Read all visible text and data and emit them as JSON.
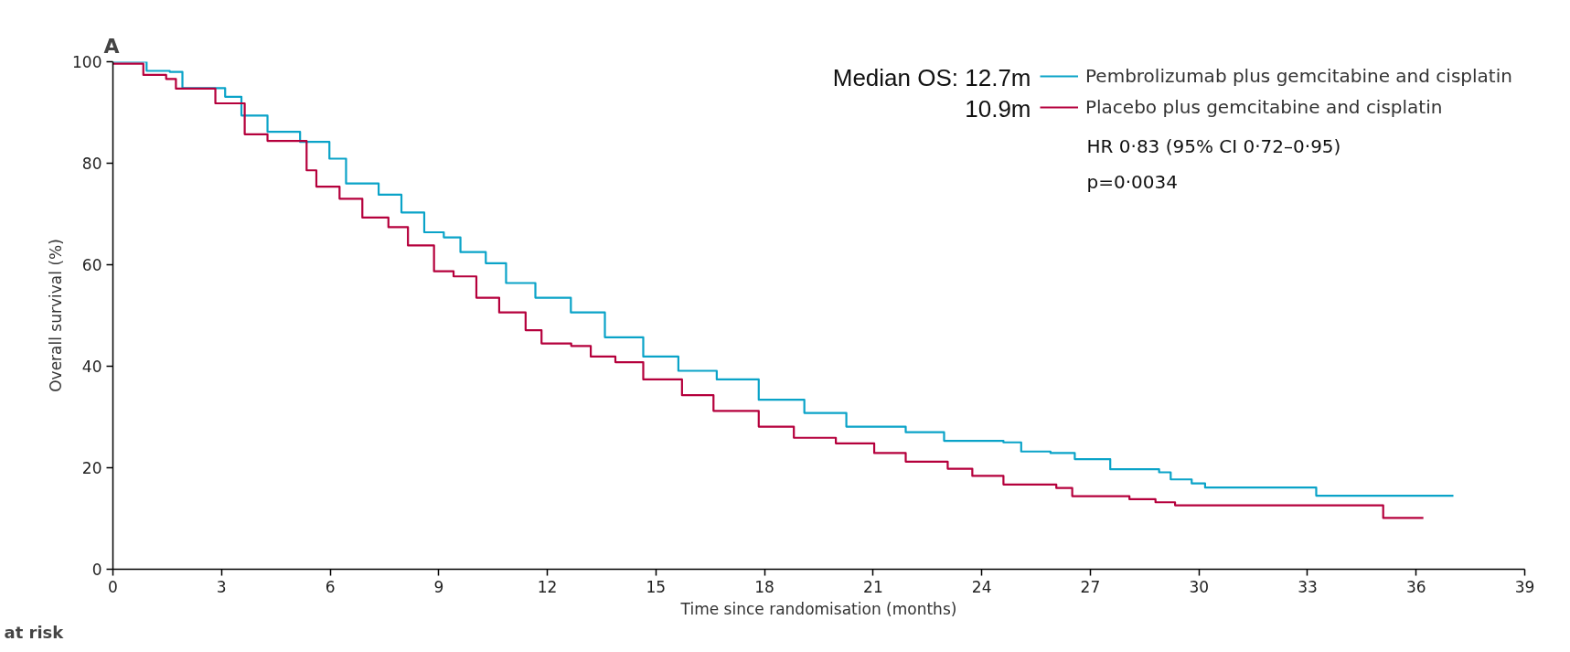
{
  "chart_data": {
    "type": "step",
    "title": "A",
    "xlabel": "Time since randomisation (months)",
    "ylabel": "Overall survival (%)",
    "xlim": [
      0,
      39
    ],
    "ylim": [
      0,
      100
    ],
    "xticks": [
      0,
      3,
      6,
      9,
      12,
      15,
      18,
      21,
      24,
      27,
      30,
      33,
      36,
      39
    ],
    "yticks": [
      0,
      20,
      40,
      60,
      80,
      100
    ],
    "grid": false,
    "legend": "top right",
    "marker": "none",
    "line_style": "solid",
    "annotations": [
      "Median OS: 12.7m",
      "10.9m",
      "HR 0·83 (95% CI 0·72–0·95)",
      "p=0·0034",
      "at risk"
    ],
    "series": [
      {
        "name": "Pembrolizumab plus gemcitabine and cisplatin",
        "color": "#0aa3c8",
        "x": [
          0,
          0.93,
          1.57,
          1.92,
          3.1,
          3.55,
          4.27,
          5.17,
          5.98,
          6.44,
          7.34,
          7.97,
          8.6,
          9.14,
          9.6,
          10.3,
          10.86,
          11.67,
          12.65,
          13.59,
          14.65,
          15.62,
          16.68,
          17.84,
          19.1,
          20.26,
          21.9,
          22.96,
          24.6,
          25.09,
          25.9,
          26.57,
          27.55,
          28.9,
          29.22,
          29.8,
          30.17,
          33.24,
          37.03
        ],
        "values": [
          100,
          98.2,
          98.0,
          94.8,
          93.1,
          89.4,
          86.2,
          84.2,
          80.9,
          76,
          73.8,
          70.3,
          66.4,
          65.4,
          62.5,
          60.3,
          56.4,
          53.5,
          50.6,
          45.7,
          41.9,
          39.1,
          37.4,
          33.4,
          30.8,
          28.1,
          27,
          25.3,
          25,
          23.2,
          22.9,
          21.7,
          19.7,
          19.1,
          17.7,
          16.9,
          16.1,
          14.5,
          14.5
        ]
      },
      {
        "name": "Placebo plus gemcitabine and cisplatin",
        "color": "#b5003c",
        "x": [
          0,
          0.84,
          1.47,
          1.74,
          2.83,
          3.64,
          4.27,
          5.35,
          5.62,
          6.26,
          6.89,
          7.61,
          8.15,
          8.87,
          9.41,
          10.04,
          10.67,
          11.4,
          11.84,
          12.66,
          13.2,
          13.88,
          14.65,
          15.72,
          16.59,
          17.84,
          18.81,
          19.97,
          21.03,
          21.9,
          23.06,
          23.74,
          24.6,
          26.06,
          26.5,
          28.08,
          28.8,
          29.34,
          35.09,
          36.2
        ],
        "values": [
          99.6,
          97.4,
          96.6,
          94.7,
          91.8,
          85.7,
          84.4,
          78.6,
          75.4,
          73,
          69.3,
          67.4,
          63.8,
          58.7,
          57.7,
          53.5,
          50.6,
          47.1,
          44.5,
          44,
          41.9,
          40.8,
          37.4,
          34.3,
          31.2,
          28.1,
          25.9,
          24.8,
          22.9,
          21.2,
          19.8,
          18.4,
          16.7,
          16,
          14.4,
          13.8,
          13.2,
          12.6,
          10.1,
          10.1
        ]
      }
    ]
  }
}
